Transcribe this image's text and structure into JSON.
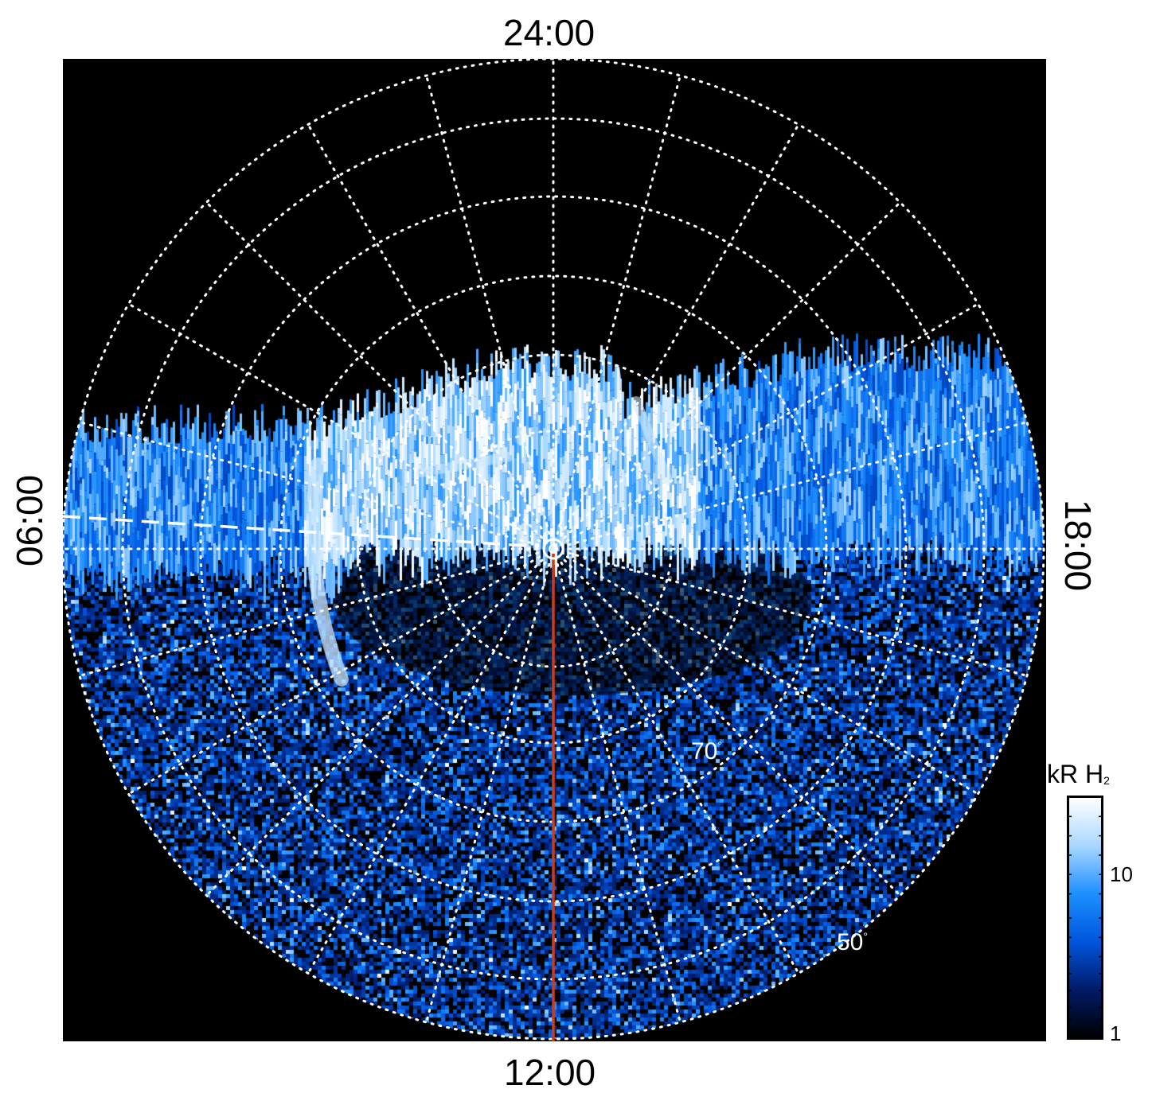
{
  "local_time_labels": {
    "top": "24:00",
    "bottom": "12:00",
    "left": "06:00",
    "right": "18:00"
  },
  "latitude_labels": {
    "lat70": "70",
    "lat50": "50",
    "degree_symbol": "°"
  },
  "colorbar": {
    "title_main": "kR H",
    "title_sub": "2",
    "ticks": [
      "10",
      "1"
    ],
    "scale": "log",
    "colors": [
      "#000000",
      "#001a66",
      "#0055dd",
      "#1e90ff",
      "#aad8ff",
      "#ffffff"
    ]
  },
  "colors": {
    "background": "#000000",
    "grid": "#ffffff",
    "noon_meridian": "#d23a12",
    "aurora_bright": "#cfe9ff",
    "aurora_mid": "#1e90ff",
    "aurora_dark": "#002a88"
  }
}
